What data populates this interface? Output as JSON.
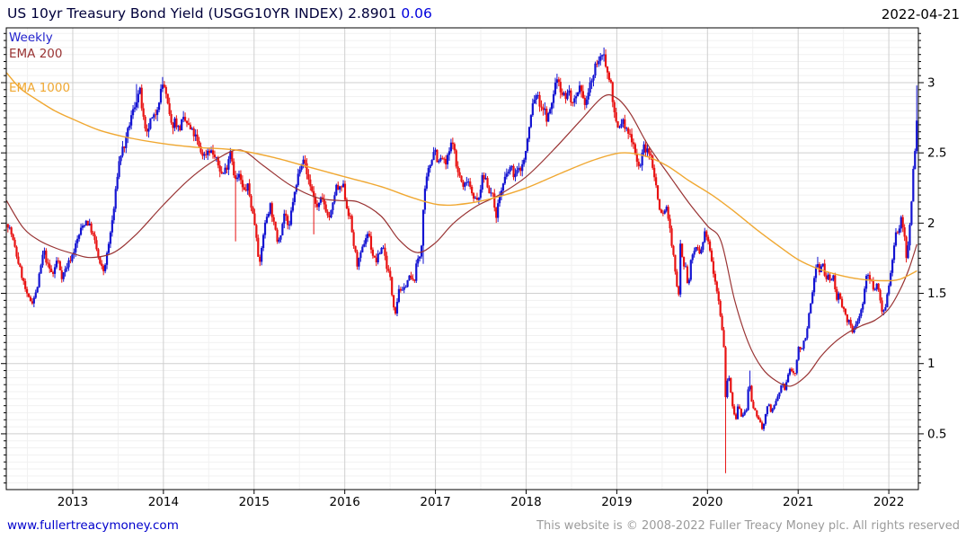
{
  "header": {
    "title": "US 10yr Treasury Bond Yield (USGG10YR INDEX)",
    "last": "2.8901",
    "change": "0.06",
    "date": "2022-04-21"
  },
  "legend": {
    "weekly": "Weekly",
    "ema200": "EMA 200",
    "ema1000": "EMA 1000"
  },
  "footer": {
    "site": "www.fullertreacymoney.com",
    "copyright": "This website is © 2008-2022 Fuller Treacy Money plc. All rights reserved"
  },
  "colors": {
    "title": "#00003a",
    "change": "#0000dd",
    "weekly_label": "#2222cc",
    "ema200": "#993333",
    "ema1000": "#f0a832",
    "candle_up": "#1414d2",
    "candle_down": "#e81212",
    "grid_major": "#cfcfcf",
    "grid_minor": "#f1f1f1",
    "axis": "#000000",
    "link": "#0000cc",
    "copyright_text": "#9b9b9b"
  },
  "chart_data": {
    "type": "candlestick",
    "title": "US 10yr Treasury Bond Yield (USGG10YR INDEX)",
    "frequency": "Weekly",
    "last_close": 2.8901,
    "change": 0.06,
    "legend": [
      "Weekly",
      "EMA 200",
      "EMA 1000"
    ],
    "x_ticks": [
      2013,
      2014,
      2015,
      2016,
      2017,
      2018,
      2019,
      2020,
      2021,
      2022
    ],
    "y_ticks": [
      0.5,
      1,
      1.5,
      2,
      2.5,
      3
    ],
    "y_tick_labels": [
      "0.5",
      "1",
      "1.5",
      "2",
      "2.5",
      "3"
    ],
    "x_range": [
      2012.267,
      2022.326
    ],
    "y_range": [
      0.103,
      3.39
    ],
    "grid": true,
    "weekly_close_anchors": [
      [
        2012.27,
        2.02
      ],
      [
        2012.32,
        1.93
      ],
      [
        2012.38,
        1.77
      ],
      [
        2012.44,
        1.62
      ],
      [
        2012.5,
        1.47
      ],
      [
        2012.55,
        1.44
      ],
      [
        2012.6,
        1.51
      ],
      [
        2012.64,
        1.66
      ],
      [
        2012.68,
        1.81
      ],
      [
        2012.72,
        1.7
      ],
      [
        2012.78,
        1.63
      ],
      [
        2012.83,
        1.75
      ],
      [
        2012.88,
        1.62
      ],
      [
        2012.94,
        1.7
      ],
      [
        2013.0,
        1.78
      ],
      [
        2013.05,
        1.88
      ],
      [
        2013.1,
        1.97
      ],
      [
        2013.15,
        2.02
      ],
      [
        2013.2,
        1.96
      ],
      [
        2013.25,
        1.85
      ],
      [
        2013.3,
        1.7
      ],
      [
        2013.34,
        1.66
      ],
      [
        2013.38,
        1.78
      ],
      [
        2013.42,
        1.95
      ],
      [
        2013.46,
        2.13
      ],
      [
        2013.5,
        2.4
      ],
      [
        2013.54,
        2.52
      ],
      [
        2013.58,
        2.56
      ],
      [
        2013.63,
        2.72
      ],
      [
        2013.68,
        2.83
      ],
      [
        2013.71,
        2.9
      ],
      [
        2013.74,
        2.94
      ],
      [
        2013.78,
        2.73
      ],
      [
        2013.81,
        2.6
      ],
      [
        2013.85,
        2.72
      ],
      [
        2013.9,
        2.75
      ],
      [
        2013.95,
        2.88
      ],
      [
        2014.0,
        3.01
      ],
      [
        2014.04,
        2.86
      ],
      [
        2014.09,
        2.68
      ],
      [
        2014.13,
        2.74
      ],
      [
        2014.17,
        2.66
      ],
      [
        2014.21,
        2.73
      ],
      [
        2014.25,
        2.72
      ],
      [
        2014.3,
        2.66
      ],
      [
        2014.35,
        2.62
      ],
      [
        2014.4,
        2.52
      ],
      [
        2014.45,
        2.48
      ],
      [
        2014.5,
        2.53
      ],
      [
        2014.55,
        2.49
      ],
      [
        2014.6,
        2.42
      ],
      [
        2014.65,
        2.34
      ],
      [
        2014.7,
        2.41
      ],
      [
        2014.74,
        2.53
      ],
      [
        2014.79,
        2.3
      ],
      [
        2014.84,
        2.34
      ],
      [
        2014.88,
        2.22
      ],
      [
        2014.93,
        2.26
      ],
      [
        2014.97,
        2.12
      ],
      [
        2015.02,
        1.95
      ],
      [
        2015.06,
        1.68
      ],
      [
        2015.1,
        1.92
      ],
      [
        2015.14,
        2.05
      ],
      [
        2015.18,
        2.13
      ],
      [
        2015.22,
        1.98
      ],
      [
        2015.26,
        1.87
      ],
      [
        2015.3,
        1.95
      ],
      [
        2015.34,
        2.1
      ],
      [
        2015.38,
        1.92
      ],
      [
        2015.42,
        2.14
      ],
      [
        2015.46,
        2.24
      ],
      [
        2015.5,
        2.4
      ],
      [
        2015.54,
        2.48
      ],
      [
        2015.58,
        2.35
      ],
      [
        2015.62,
        2.27
      ],
      [
        2015.66,
        2.18
      ],
      [
        2015.7,
        2.1
      ],
      [
        2015.74,
        2.17
      ],
      [
        2015.78,
        2.13
      ],
      [
        2015.82,
        2.03
      ],
      [
        2015.86,
        2.09
      ],
      [
        2015.9,
        2.26
      ],
      [
        2015.94,
        2.23
      ],
      [
        2015.98,
        2.27
      ],
      [
        2016.02,
        2.12
      ],
      [
        2016.06,
        2.03
      ],
      [
        2016.1,
        1.84
      ],
      [
        2016.14,
        1.7
      ],
      [
        2016.18,
        1.78
      ],
      [
        2016.22,
        1.88
      ],
      [
        2016.26,
        1.94
      ],
      [
        2016.3,
        1.79
      ],
      [
        2016.34,
        1.72
      ],
      [
        2016.38,
        1.78
      ],
      [
        2016.42,
        1.85
      ],
      [
        2016.46,
        1.7
      ],
      [
        2016.5,
        1.61
      ],
      [
        2016.53,
        1.44
      ],
      [
        2016.56,
        1.37
      ],
      [
        2016.6,
        1.55
      ],
      [
        2016.64,
        1.5
      ],
      [
        2016.68,
        1.58
      ],
      [
        2016.72,
        1.62
      ],
      [
        2016.76,
        1.57
      ],
      [
        2016.8,
        1.74
      ],
      [
        2016.84,
        1.78
      ],
      [
        2016.87,
        2.15
      ],
      [
        2016.91,
        2.34
      ],
      [
        2016.95,
        2.44
      ],
      [
        2016.99,
        2.55
      ],
      [
        2017.03,
        2.42
      ],
      [
        2017.07,
        2.47
      ],
      [
        2017.11,
        2.41
      ],
      [
        2017.15,
        2.5
      ],
      [
        2017.19,
        2.6
      ],
      [
        2017.23,
        2.4
      ],
      [
        2017.27,
        2.33
      ],
      [
        2017.31,
        2.24
      ],
      [
        2017.35,
        2.33
      ],
      [
        2017.39,
        2.25
      ],
      [
        2017.43,
        2.18
      ],
      [
        2017.47,
        2.14
      ],
      [
        2017.51,
        2.31
      ],
      [
        2017.55,
        2.33
      ],
      [
        2017.59,
        2.24
      ],
      [
        2017.63,
        2.19
      ],
      [
        2017.67,
        2.06
      ],
      [
        2017.71,
        2.2
      ],
      [
        2017.75,
        2.28
      ],
      [
        2017.79,
        2.35
      ],
      [
        2017.83,
        2.4
      ],
      [
        2017.87,
        2.34
      ],
      [
        2017.91,
        2.37
      ],
      [
        2017.95,
        2.4
      ],
      [
        2017.99,
        2.48
      ],
      [
        2018.03,
        2.66
      ],
      [
        2018.07,
        2.84
      ],
      [
        2018.11,
        2.92
      ],
      [
        2018.15,
        2.85
      ],
      [
        2018.19,
        2.82
      ],
      [
        2018.23,
        2.74
      ],
      [
        2018.27,
        2.8
      ],
      [
        2018.31,
        2.96
      ],
      [
        2018.35,
        3.05
      ],
      [
        2018.39,
        2.93
      ],
      [
        2018.43,
        2.9
      ],
      [
        2018.47,
        2.94
      ],
      [
        2018.51,
        2.84
      ],
      [
        2018.55,
        2.87
      ],
      [
        2018.59,
        2.95
      ],
      [
        2018.63,
        2.86
      ],
      [
        2018.67,
        2.88
      ],
      [
        2018.71,
        3.0
      ],
      [
        2018.75,
        3.06
      ],
      [
        2018.79,
        3.19
      ],
      [
        2018.83,
        3.14
      ],
      [
        2018.86,
        3.22
      ],
      [
        2018.9,
        3.05
      ],
      [
        2018.94,
        2.99
      ],
      [
        2018.98,
        2.72
      ],
      [
        2019.02,
        2.66
      ],
      [
        2019.06,
        2.74
      ],
      [
        2019.1,
        2.66
      ],
      [
        2019.14,
        2.63
      ],
      [
        2019.18,
        2.59
      ],
      [
        2019.22,
        2.44
      ],
      [
        2019.26,
        2.41
      ],
      [
        2019.3,
        2.55
      ],
      [
        2019.34,
        2.5
      ],
      [
        2019.38,
        2.47
      ],
      [
        2019.42,
        2.32
      ],
      [
        2019.46,
        2.14
      ],
      [
        2019.5,
        2.05
      ],
      [
        2019.54,
        2.12
      ],
      [
        2019.57,
        2.05
      ],
      [
        2019.6,
        1.86
      ],
      [
        2019.63,
        1.74
      ],
      [
        2019.66,
        1.55
      ],
      [
        2019.69,
        1.5
      ],
      [
        2019.7,
        1.88
      ],
      [
        2019.73,
        1.72
      ],
      [
        2019.76,
        1.68
      ],
      [
        2019.79,
        1.53
      ],
      [
        2019.82,
        1.75
      ],
      [
        2019.85,
        1.8
      ],
      [
        2019.88,
        1.84
      ],
      [
        2019.91,
        1.77
      ],
      [
        2019.94,
        1.82
      ],
      [
        2019.97,
        1.92
      ],
      [
        2020.0,
        1.88
      ],
      [
        2020.03,
        1.82
      ],
      [
        2020.06,
        1.68
      ],
      [
        2020.09,
        1.58
      ],
      [
        2020.12,
        1.47
      ],
      [
        2020.15,
        1.32
      ],
      [
        2020.18,
        1.13
      ],
      [
        2020.2,
        0.77
      ],
      [
        2020.23,
        0.95
      ],
      [
        2020.25,
        0.84
      ],
      [
        2020.28,
        0.67
      ],
      [
        2020.31,
        0.59
      ],
      [
        2020.34,
        0.72
      ],
      [
        2020.37,
        0.62
      ],
      [
        2020.4,
        0.64
      ],
      [
        2020.43,
        0.68
      ],
      [
        2020.46,
        0.88
      ],
      [
        2020.49,
        0.7
      ],
      [
        2020.52,
        0.66
      ],
      [
        2020.55,
        0.63
      ],
      [
        2020.58,
        0.58
      ],
      [
        2020.61,
        0.53
      ],
      [
        2020.64,
        0.63
      ],
      [
        2020.67,
        0.72
      ],
      [
        2020.7,
        0.66
      ],
      [
        2020.73,
        0.69
      ],
      [
        2020.76,
        0.74
      ],
      [
        2020.79,
        0.78
      ],
      [
        2020.82,
        0.87
      ],
      [
        2020.85,
        0.82
      ],
      [
        2020.88,
        0.88
      ],
      [
        2020.91,
        0.97
      ],
      [
        2020.94,
        0.93
      ],
      [
        2020.97,
        0.94
      ],
      [
        2021.0,
        1.11
      ],
      [
        2021.03,
        1.09
      ],
      [
        2021.06,
        1.16
      ],
      [
        2021.09,
        1.21
      ],
      [
        2021.12,
        1.34
      ],
      [
        2021.15,
        1.46
      ],
      [
        2021.18,
        1.62
      ],
      [
        2021.21,
        1.73
      ],
      [
        2021.24,
        1.66
      ],
      [
        2021.27,
        1.72
      ],
      [
        2021.3,
        1.58
      ],
      [
        2021.33,
        1.63
      ],
      [
        2021.36,
        1.58
      ],
      [
        2021.39,
        1.63
      ],
      [
        2021.42,
        1.45
      ],
      [
        2021.45,
        1.52
      ],
      [
        2021.48,
        1.43
      ],
      [
        2021.51,
        1.36
      ],
      [
        2021.54,
        1.29
      ],
      [
        2021.57,
        1.3
      ],
      [
        2021.6,
        1.22
      ],
      [
        2021.63,
        1.26
      ],
      [
        2021.66,
        1.32
      ],
      [
        2021.69,
        1.37
      ],
      [
        2021.72,
        1.46
      ],
      [
        2021.75,
        1.61
      ],
      [
        2021.78,
        1.63
      ],
      [
        2021.81,
        1.57
      ],
      [
        2021.84,
        1.53
      ],
      [
        2021.87,
        1.58
      ],
      [
        2021.9,
        1.47
      ],
      [
        2021.93,
        1.36
      ],
      [
        2021.96,
        1.41
      ],
      [
        2021.99,
        1.52
      ],
      [
        2022.02,
        1.63
      ],
      [
        2022.05,
        1.78
      ],
      [
        2022.08,
        1.92
      ],
      [
        2022.11,
        1.95
      ],
      [
        2022.14,
        2.05
      ],
      [
        2022.17,
        1.92
      ],
      [
        2022.2,
        1.73
      ],
      [
        2022.23,
        2.0
      ],
      [
        2022.25,
        2.14
      ],
      [
        2022.27,
        2.38
      ],
      [
        2022.29,
        2.5
      ],
      [
        2022.31,
        2.79
      ],
      [
        2022.33,
        2.89
      ]
    ],
    "special_wicks": [
      {
        "t": 2013.71,
        "high": 2.99
      },
      {
        "t": 2014.0,
        "high": 3.04
      },
      {
        "t": 2014.79,
        "low": 1.87
      },
      {
        "t": 2015.66,
        "low": 1.92
      },
      {
        "t": 2016.87,
        "low": 1.71
      },
      {
        "t": 2018.86,
        "high": 3.25
      },
      {
        "t": 2020.2,
        "low": 0.22
      },
      {
        "t": 2020.46,
        "high": 0.95
      },
      {
        "t": 2021.21,
        "high": 1.76
      },
      {
        "t": 2022.31,
        "high": 2.98
      }
    ],
    "ema200": [
      [
        2012.27,
        2.16
      ],
      [
        2012.45,
        1.97
      ],
      [
        2012.62,
        1.88
      ],
      [
        2012.82,
        1.82
      ],
      [
        2013.02,
        1.78
      ],
      [
        2013.2,
        1.755
      ],
      [
        2013.45,
        1.79
      ],
      [
        2013.7,
        1.92
      ],
      [
        2014.0,
        2.13
      ],
      [
        2014.3,
        2.32
      ],
      [
        2014.6,
        2.46
      ],
      [
        2014.85,
        2.52
      ],
      [
        2015.1,
        2.41
      ],
      [
        2015.4,
        2.27
      ],
      [
        2015.7,
        2.18
      ],
      [
        2015.95,
        2.16
      ],
      [
        2016.15,
        2.15
      ],
      [
        2016.4,
        2.05
      ],
      [
        2016.6,
        1.88
      ],
      [
        2016.8,
        1.79
      ],
      [
        2017.0,
        1.86
      ],
      [
        2017.2,
        2.0
      ],
      [
        2017.45,
        2.12
      ],
      [
        2017.7,
        2.2
      ],
      [
        2018.0,
        2.33
      ],
      [
        2018.3,
        2.52
      ],
      [
        2018.6,
        2.73
      ],
      [
        2018.85,
        2.9
      ],
      [
        2019.0,
        2.89
      ],
      [
        2019.15,
        2.78
      ],
      [
        2019.35,
        2.55
      ],
      [
        2019.6,
        2.32
      ],
      [
        2019.8,
        2.14
      ],
      [
        2020.0,
        1.98
      ],
      [
        2020.15,
        1.87
      ],
      [
        2020.3,
        1.45
      ],
      [
        2020.45,
        1.15
      ],
      [
        2020.6,
        0.97
      ],
      [
        2020.75,
        0.88
      ],
      [
        2020.92,
        0.84
      ],
      [
        2021.1,
        0.92
      ],
      [
        2021.25,
        1.05
      ],
      [
        2021.4,
        1.15
      ],
      [
        2021.55,
        1.22
      ],
      [
        2021.7,
        1.27
      ],
      [
        2021.85,
        1.31
      ],
      [
        2022.0,
        1.39
      ],
      [
        2022.12,
        1.52
      ],
      [
        2022.22,
        1.67
      ],
      [
        2022.31,
        1.85
      ]
    ],
    "ema1000": [
      [
        2012.27,
        3.07
      ],
      [
        2012.42,
        2.96
      ],
      [
        2012.6,
        2.88
      ],
      [
        2012.8,
        2.8
      ],
      [
        2013.0,
        2.74
      ],
      [
        2013.3,
        2.66
      ],
      [
        2013.6,
        2.61
      ],
      [
        2013.95,
        2.57
      ],
      [
        2014.35,
        2.54
      ],
      [
        2014.8,
        2.52
      ],
      [
        2015.2,
        2.47
      ],
      [
        2015.6,
        2.4
      ],
      [
        2016.0,
        2.33
      ],
      [
        2016.4,
        2.26
      ],
      [
        2016.75,
        2.18
      ],
      [
        2017.05,
        2.13
      ],
      [
        2017.35,
        2.14
      ],
      [
        2017.65,
        2.18
      ],
      [
        2018.0,
        2.25
      ],
      [
        2018.4,
        2.36
      ],
      [
        2018.75,
        2.45
      ],
      [
        2019.05,
        2.5
      ],
      [
        2019.3,
        2.48
      ],
      [
        2019.55,
        2.41
      ],
      [
        2019.8,
        2.3
      ],
      [
        2020.05,
        2.2
      ],
      [
        2020.3,
        2.08
      ],
      [
        2020.55,
        1.95
      ],
      [
        2020.8,
        1.83
      ],
      [
        2021.0,
        1.74
      ],
      [
        2021.2,
        1.68
      ],
      [
        2021.45,
        1.63
      ],
      [
        2021.7,
        1.6
      ],
      [
        2021.95,
        1.59
      ],
      [
        2022.12,
        1.6
      ],
      [
        2022.31,
        1.66
      ]
    ]
  }
}
